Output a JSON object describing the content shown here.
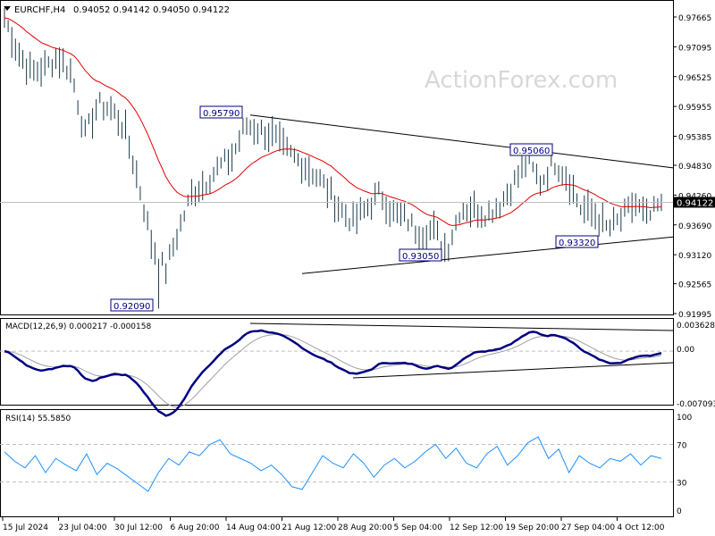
{
  "header": {
    "symbol": "EURCHF,H4",
    "ohlc": "0.94052 0.94142 0.94050 0.94122"
  },
  "watermark": "ActionForex.com",
  "colors": {
    "bars": "#1a3a4a",
    "ma": "#e00000",
    "macd": "#000080",
    "signal": "#a0a0a0",
    "rsi": "#1e90ff"
  },
  "chart_data": [
    {
      "type": "bar",
      "pane": "price",
      "title": "EURCHF,H4",
      "x_ticks": [
        "15 Jul 2024",
        "23 Jul 04:00",
        "30 Jul 12:00",
        "6 Aug 20:00",
        "14 Aug 04:00",
        "21 Aug 12:00",
        "28 Aug 20:00",
        "5 Sep 04:00",
        "12 Sep 12:00",
        "19 Sep 20:00",
        "27 Sep 04:00",
        "4 Oct 12:00"
      ],
      "y_ticks": [
        "0.97665",
        "0.97095",
        "0.96525",
        "0.95955",
        "0.95385",
        "0.94830",
        "0.94260",
        "0.93690",
        "0.93120",
        "0.92565",
        "0.91995"
      ],
      "ylim": [
        0.91995,
        0.97665
      ],
      "current_price": "0.94122",
      "close": [
        0.9765,
        0.97,
        0.966,
        0.967,
        0.969,
        0.966,
        0.954,
        0.96,
        0.959,
        0.955,
        0.945,
        0.933,
        0.928,
        0.936,
        0.943,
        0.945,
        0.948,
        0.95,
        0.956,
        0.955,
        0.954,
        0.951,
        0.949,
        0.947,
        0.944,
        0.94,
        0.9375,
        0.94,
        0.943,
        0.939,
        0.938,
        0.935,
        0.936,
        0.932,
        0.94,
        0.94,
        0.939,
        0.941,
        0.945,
        0.949,
        0.945,
        0.949,
        0.946,
        0.94,
        0.939,
        0.936,
        0.938,
        0.941,
        0.938,
        0.9412
      ],
      "annotations": [
        {
          "text": "0.95790",
          "price": 0.9579
        },
        {
          "text": "0.95060",
          "price": 0.9506
        },
        {
          "text": "0.93320",
          "price": 0.9332
        },
        {
          "text": "0.93050",
          "price": 0.9305
        },
        {
          "text": "0.92090",
          "price": 0.9209
        }
      ],
      "trendlines": [
        {
          "from": 0.9579,
          "to": 0.9478
        },
        {
          "from": 0.9276,
          "to": 0.9346
        }
      ]
    },
    {
      "type": "line",
      "pane": "macd",
      "title": "MACD(12,26,9) 0.000217 -0.000158",
      "y_ticks": [
        "0.003628",
        "0.00",
        "-0.007093"
      ],
      "ylim": [
        -0.007093,
        0.003628
      ]
    },
    {
      "type": "line",
      "pane": "rsi",
      "title": "RSI(14) 55.5850",
      "y_ticks": [
        "100",
        "70",
        "30",
        "0"
      ],
      "ylim": [
        0,
        100
      ],
      "values": [
        62,
        52,
        45,
        58,
        40,
        55,
        48,
        42,
        60,
        38,
        50,
        44,
        36,
        28,
        20,
        40,
        55,
        48,
        62,
        58,
        70,
        75,
        60,
        55,
        50,
        42,
        48,
        38,
        25,
        22,
        40,
        58,
        50,
        45,
        60,
        50,
        35,
        48,
        55,
        45,
        52,
        62,
        70,
        55,
        66,
        50,
        45,
        60,
        68,
        48,
        58,
        72,
        78,
        55,
        65,
        40,
        58,
        50,
        45,
        55,
        52,
        60,
        48,
        58,
        55
      ]
    }
  ]
}
